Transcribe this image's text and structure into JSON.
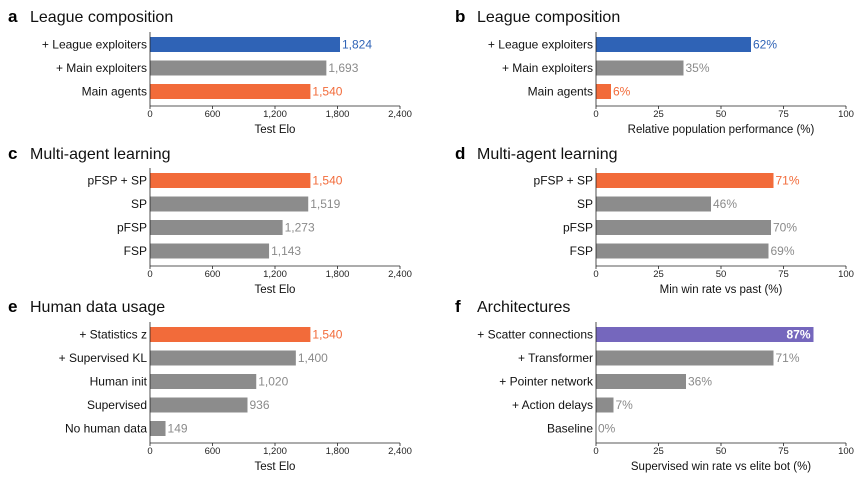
{
  "colors": {
    "blue": "#2f63b6",
    "gray": "#8c8c8c",
    "orange": "#f26b3a",
    "purple": "#7567bd"
  },
  "chart_data": [
    {
      "id": "a",
      "letter": "a",
      "title": "League composition",
      "type": "bar",
      "orientation": "horizontal",
      "categories": [
        "+ League exploiters",
        "+ Main exploiters",
        "Main agents"
      ],
      "values": [
        1824,
        1693,
        1540
      ],
      "value_labels": [
        "1,824",
        "1,693",
        "1,540"
      ],
      "bar_colors": [
        "blue",
        "gray",
        "orange"
      ],
      "xlim": [
        0,
        2400
      ],
      "ticks": [
        0,
        600,
        1200,
        1800,
        2400
      ],
      "tick_labels": [
        "0",
        "600",
        "1,200",
        "1,800",
        "2,400"
      ],
      "xlabel": "Test Elo"
    },
    {
      "id": "b",
      "letter": "b",
      "title": "League composition",
      "type": "bar",
      "orientation": "horizontal",
      "categories": [
        "+ League exploiters",
        "+ Main exploiters",
        "Main agents"
      ],
      "values": [
        62,
        35,
        6
      ],
      "value_labels": [
        "62%",
        "35%",
        "6%"
      ],
      "bar_colors": [
        "blue",
        "gray",
        "orange"
      ],
      "xlim": [
        0,
        100
      ],
      "ticks": [
        0,
        25,
        50,
        75,
        100
      ],
      "tick_labels": [
        "0",
        "25",
        "50",
        "75",
        "100"
      ],
      "xlabel": "Relative population performance (%)"
    },
    {
      "id": "c",
      "letter": "c",
      "title": "Multi-agent learning",
      "type": "bar",
      "orientation": "horizontal",
      "categories": [
        "pFSP + SP",
        "SP",
        "pFSP",
        "FSP"
      ],
      "values": [
        1540,
        1519,
        1273,
        1143
      ],
      "value_labels": [
        "1,540",
        "1,519",
        "1,273",
        "1,143"
      ],
      "bar_colors": [
        "orange",
        "gray",
        "gray",
        "gray"
      ],
      "xlim": [
        0,
        2400
      ],
      "ticks": [
        0,
        600,
        1200,
        1800,
        2400
      ],
      "tick_labels": [
        "0",
        "600",
        "1,200",
        "1,800",
        "2,400"
      ],
      "xlabel": "Test Elo"
    },
    {
      "id": "d",
      "letter": "d",
      "title": "Multi-agent learning",
      "type": "bar",
      "orientation": "horizontal",
      "categories": [
        "pFSP + SP",
        "SP",
        "pFSP",
        "FSP"
      ],
      "values": [
        71,
        46,
        70,
        69
      ],
      "value_labels": [
        "71%",
        "46%",
        "70%",
        "69%"
      ],
      "bar_colors": [
        "orange",
        "gray",
        "gray",
        "gray"
      ],
      "xlim": [
        0,
        100
      ],
      "ticks": [
        0,
        25,
        50,
        75,
        100
      ],
      "tick_labels": [
        "0",
        "25",
        "50",
        "75",
        "100"
      ],
      "xlabel": "Min win rate vs past (%)"
    },
    {
      "id": "e",
      "letter": "e",
      "title": "Human data usage",
      "type": "bar",
      "orientation": "horizontal",
      "categories": [
        "+ Statistics z",
        "+ Supervised KL",
        "Human init",
        "Supervised",
        "No human data"
      ],
      "values": [
        1540,
        1400,
        1020,
        936,
        149
      ],
      "value_labels": [
        "1,540",
        "1,400",
        "1,020",
        "936",
        "149"
      ],
      "bar_colors": [
        "orange",
        "gray",
        "gray",
        "gray",
        "gray"
      ],
      "xlim": [
        0,
        2400
      ],
      "ticks": [
        0,
        600,
        1200,
        1800,
        2400
      ],
      "tick_labels": [
        "0",
        "600",
        "1,200",
        "1,800",
        "2,400"
      ],
      "xlabel": "Test Elo"
    },
    {
      "id": "f",
      "letter": "f",
      "title": "Architectures",
      "type": "bar",
      "orientation": "horizontal",
      "categories": [
        "+ Scatter connections",
        "+ Transformer",
        "+ Pointer network",
        "+ Action delays",
        "Baseline"
      ],
      "values": [
        87,
        71,
        36,
        7,
        0
      ],
      "value_labels": [
        "87%",
        "71%",
        "36%",
        "7%",
        "0%"
      ],
      "bar_colors": [
        "purple",
        "gray",
        "gray",
        "gray",
        "gray"
      ],
      "xlim": [
        0,
        100
      ],
      "ticks": [
        0,
        25,
        50,
        75,
        100
      ],
      "tick_labels": [
        "0",
        "25",
        "50",
        "75",
        "100"
      ],
      "xlabel": "Supervised win rate vs elite bot (%)"
    }
  ]
}
